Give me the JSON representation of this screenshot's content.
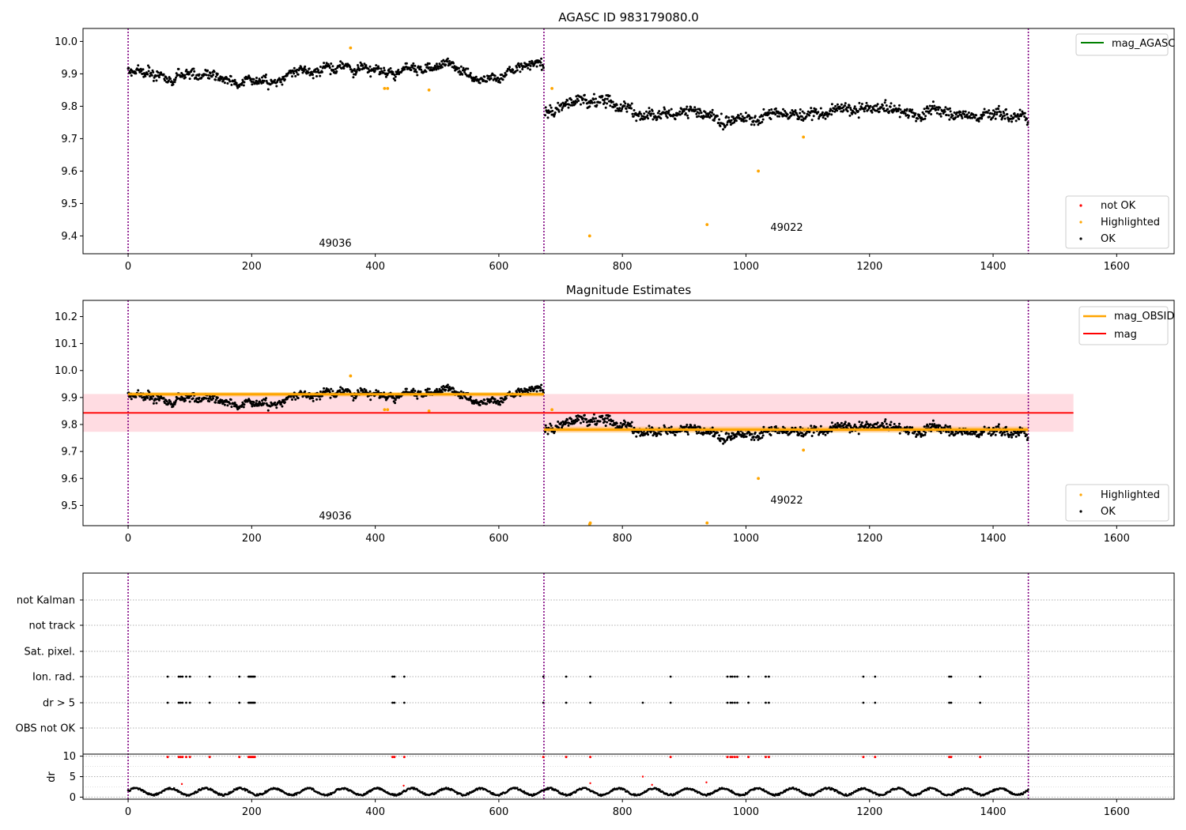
{
  "figure": {
    "obsid_labels": [
      "49036",
      "49022"
    ],
    "obsid_separators_x": [
      0,
      673,
      1457
    ],
    "colors": {
      "ok": "#000000",
      "highlighted": "#ffa500",
      "not_ok": "#ff0000",
      "agasc": "#008000",
      "mag": "#ff0000",
      "mag_obsid": "#ffa500",
      "band": "#ffc0cb",
      "separator": "#800080",
      "grid": "#b0b0b0"
    }
  },
  "chart_data": [
    {
      "id": "panel1",
      "type": "scatter",
      "title": "AGASC ID 983179080.0",
      "xlabel": "",
      "ylabel": "",
      "xlim": [
        -73,
        1693
      ],
      "ylim": [
        9.345,
        10.04
      ],
      "xticks": [
        0,
        200,
        400,
        600,
        800,
        1000,
        1200,
        1400,
        1600
      ],
      "yticks": [
        9.4,
        9.5,
        9.6,
        9.7,
        9.8,
        9.9,
        10.0
      ],
      "legend_top": [
        "mag_AGASC"
      ],
      "legend_bottom": [
        "not OK",
        "Highlighted",
        "OK"
      ],
      "obsid_label_positions": [
        [
          336,
          9.37
        ],
        [
          1037,
          9.42
        ]
      ],
      "ok_segments": [
        {
          "x_start": 0,
          "x_end": 673,
          "mean": 9.912,
          "scatter": 0.018
        },
        {
          "x_start": 675,
          "x_end": 1457,
          "mean": 9.781,
          "scatter": 0.022
        }
      ],
      "highlighted_points": [
        [
          360,
          9.98
        ],
        [
          415,
          9.855
        ],
        [
          420,
          9.855
        ],
        [
          487,
          9.85
        ],
        [
          686,
          9.855
        ],
        [
          747,
          9.4
        ],
        [
          937,
          9.435
        ],
        [
          1020,
          9.6
        ],
        [
          1093,
          9.705
        ]
      ]
    },
    {
      "id": "panel2",
      "type": "scatter",
      "title": "Magnitude Estimates",
      "xlabel": "",
      "ylabel": "",
      "xlim": [
        -73,
        1693
      ],
      "ylim": [
        9.425,
        10.26
      ],
      "xticks": [
        0,
        200,
        400,
        600,
        800,
        1000,
        1200,
        1400,
        1600
      ],
      "yticks": [
        9.5,
        9.6,
        9.7,
        9.8,
        9.9,
        10.0,
        10.1,
        10.2
      ],
      "legend_top": [
        "mag_OBSID",
        "mag"
      ],
      "legend_bottom": [
        "Highlighted",
        "OK"
      ],
      "obsid_label_positions": [
        [
          336,
          9.455
        ],
        [
          1037,
          9.52
        ]
      ],
      "mag": 9.843,
      "mag_band": [
        9.773,
        9.913
      ],
      "mag_band_x": [
        -73,
        1530
      ],
      "mag_obsid": [
        {
          "x_start": 0,
          "x_end": 673,
          "value": 9.912,
          "band": [
            9.904,
            9.92
          ]
        },
        {
          "x_start": 673,
          "x_end": 1457,
          "value": 9.781,
          "band": [
            9.77,
            9.792
          ]
        }
      ],
      "ok_segments": [
        {
          "x_start": 0,
          "x_end": 673,
          "mean": 9.912,
          "scatter": 0.018
        },
        {
          "x_start": 675,
          "x_end": 1457,
          "mean": 9.781,
          "scatter": 0.022
        }
      ],
      "highlighted_points": [
        [
          360,
          9.98
        ],
        [
          415,
          9.855
        ],
        [
          420,
          9.855
        ],
        [
          487,
          9.85
        ],
        [
          686,
          9.855
        ],
        [
          747,
          9.43
        ],
        [
          748,
          9.435
        ],
        [
          937,
          9.435
        ],
        [
          1020,
          9.6
        ],
        [
          1093,
          9.705
        ]
      ]
    },
    {
      "id": "panel3",
      "type": "scatter",
      "title": "",
      "xlabel": "",
      "xlim": [
        -73,
        1693
      ],
      "xticks": [
        0,
        200,
        400,
        600,
        800,
        1000,
        1200,
        1400,
        1600
      ],
      "flag_rows": [
        "not Kalman",
        "not track",
        "Sat. pixel.",
        "Ion. rad.",
        "dr > 5",
        "OBS not OK"
      ],
      "flags": {
        "Ion. rad.": [
          64,
          82,
          85,
          88,
          94,
          100,
          132,
          180,
          195,
          197,
          199,
          201,
          203,
          205,
          428,
          431,
          447,
          672,
          709,
          748,
          878,
          970,
          975,
          978,
          982,
          986,
          1004,
          1032,
          1037,
          1190,
          1209,
          1329,
          1332,
          1379
        ],
        "dr > 5": [
          64,
          82,
          85,
          88,
          94,
          100,
          132,
          180,
          195,
          197,
          199,
          201,
          203,
          205,
          428,
          431,
          447,
          672,
          709,
          748,
          833,
          878,
          970,
          975,
          978,
          982,
          986,
          1004,
          1032,
          1037,
          1190,
          1209,
          1329,
          1332,
          1379
        ]
      },
      "dr_ylabel": "dr",
      "dr_yticks": [
        0,
        5,
        10
      ],
      "dr_ylim": [
        -0.5,
        10.5
      ],
      "dr_clipped_x": [
        64,
        82,
        85,
        88,
        94,
        100,
        132,
        180,
        195,
        197,
        199,
        201,
        203,
        205,
        428,
        431,
        447,
        672,
        709,
        748,
        878,
        970,
        975,
        978,
        982,
        986,
        1004,
        1032,
        1037,
        1190,
        1209,
        1329,
        1332,
        1379
      ],
      "dr_red_points": [
        [
          87,
          3.2
        ],
        [
          446,
          2.8
        ],
        [
          748,
          3.4
        ],
        [
          833,
          5.0
        ],
        [
          848,
          3.0
        ],
        [
          936,
          3.6
        ]
      ],
      "dr_baseline": {
        "min": 0.3,
        "max": 2.6
      }
    }
  ]
}
